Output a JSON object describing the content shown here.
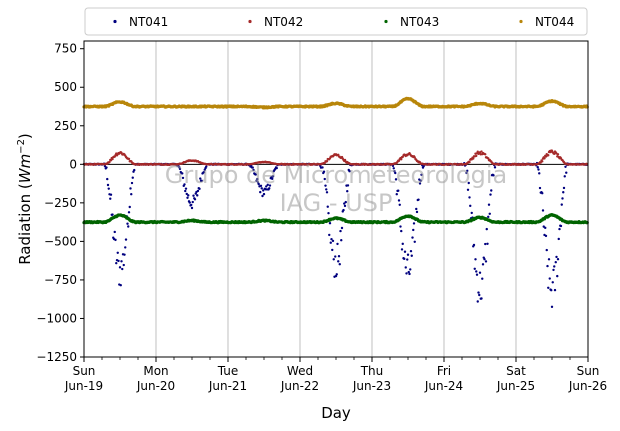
{
  "chart_data": {
    "type": "scatter",
    "xlabel": "Day",
    "ylabel_main": "Radiation (",
    "ylabel_unit": "Wm",
    "ylabel_exp": "−2",
    "ylabel_close": ")",
    "ylim": [
      -1250,
      800
    ],
    "xlim": [
      "2022-06-19",
      "2022-06-26"
    ],
    "grid": "vertical-major",
    "legend_placement": "top",
    "yticks": [
      {
        "value": 750,
        "label": "750"
      },
      {
        "value": 500,
        "label": "500"
      },
      {
        "value": 250,
        "label": "250"
      },
      {
        "value": 0,
        "label": "0"
      },
      {
        "value": -250,
        "label": "−250"
      },
      {
        "value": -500,
        "label": "−500"
      },
      {
        "value": -750,
        "label": "−750"
      },
      {
        "value": -1000,
        "label": "−1000"
      },
      {
        "value": -1250,
        "label": "−1250"
      }
    ],
    "xticks": [
      {
        "value": "2022-06-19",
        "day": "Sun",
        "date": "Jun-19"
      },
      {
        "value": "2022-06-20",
        "day": "Mon",
        "date": "Jun-20"
      },
      {
        "value": "2022-06-21",
        "day": "Tue",
        "date": "Jun-21"
      },
      {
        "value": "2022-06-22",
        "day": "Wed",
        "date": "Jun-22"
      },
      {
        "value": "2022-06-23",
        "day": "Thu",
        "date": "Jun-23"
      },
      {
        "value": "2022-06-24",
        "day": "Fri",
        "date": "Jun-24"
      },
      {
        "value": "2022-06-25",
        "day": "Sat",
        "date": "Jun-25"
      },
      {
        "value": "2022-06-26",
        "day": "Sun",
        "date": "Jun-26"
      }
    ],
    "series": [
      {
        "name": "NT041",
        "color": "#00007f",
        "baseline": 0,
        "daily_peak": [
          -690,
          -250,
          -180,
          -640,
          -700,
          -800,
          -820
        ]
      },
      {
        "name": "NT042",
        "color": "#a52a2a",
        "baseline": 0,
        "daily_peak": [
          75,
          25,
          15,
          60,
          65,
          75,
          80
        ]
      },
      {
        "name": "NT043",
        "color": "#006400",
        "baseline": -375,
        "daily_peak": [
          -330,
          -365,
          -365,
          -350,
          -335,
          -345,
          -330
        ]
      },
      {
        "name": "NT044",
        "color": "#b8860b",
        "baseline": 375,
        "daily_peak": [
          405,
          375,
          370,
          395,
          425,
          395,
          410
        ]
      }
    ],
    "watermark_line1": "Grupo de Micrometeorologia",
    "watermark_line2": "IAG - USP"
  }
}
